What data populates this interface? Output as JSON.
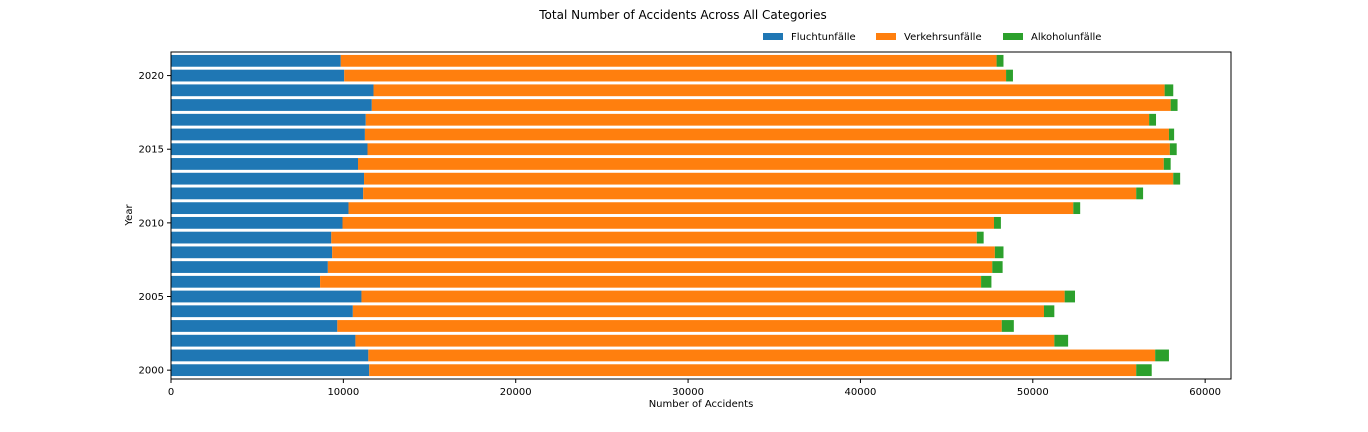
{
  "chart_data": {
    "type": "bar",
    "orientation": "horizontal",
    "stacked": true,
    "title": "Total Number of Accidents Across All Categories",
    "xlabel": "Number of Accidents",
    "ylabel": "Year",
    "xlim": [
      0,
      61500
    ],
    "x_ticks": [
      0,
      10000,
      20000,
      30000,
      40000,
      50000,
      60000
    ],
    "y_ticks": [
      2000,
      2005,
      2010,
      2015,
      2020
    ],
    "ylim": [
      1999.4,
      2021.6
    ],
    "legend": "top-right",
    "grid": false,
    "categories": [
      2000,
      2001,
      2002,
      2003,
      2004,
      2005,
      2006,
      2007,
      2008,
      2009,
      2010,
      2011,
      2012,
      2013,
      2014,
      2015,
      2016,
      2017,
      2018,
      2019,
      2020,
      2021
    ],
    "series": [
      {
        "name": "Fluchtunfälle",
        "color": "#1f77b4",
        "values": [
          11500,
          11450,
          10700,
          9650,
          10550,
          11050,
          8650,
          9100,
          9350,
          9300,
          9950,
          10300,
          11150,
          11200,
          10850,
          11400,
          11250,
          11300,
          11650,
          11750,
          10050,
          9850
        ]
      },
      {
        "name": "Verkehrsunfälle",
        "color": "#ff7f0e",
        "values": [
          44500,
          45650,
          40550,
          38550,
          40100,
          40800,
          38350,
          38550,
          38450,
          37450,
          37800,
          42050,
          44850,
          46950,
          46750,
          46550,
          46650,
          45450,
          46350,
          45900,
          38400,
          38050
        ]
      },
      {
        "name": "Alkoholunfälle",
        "color": "#2ca02c",
        "values": [
          900,
          800,
          800,
          700,
          600,
          600,
          600,
          600,
          500,
          400,
          400,
          400,
          400,
          400,
          400,
          400,
          300,
          400,
          400,
          500,
          400,
          400
        ]
      }
    ]
  }
}
